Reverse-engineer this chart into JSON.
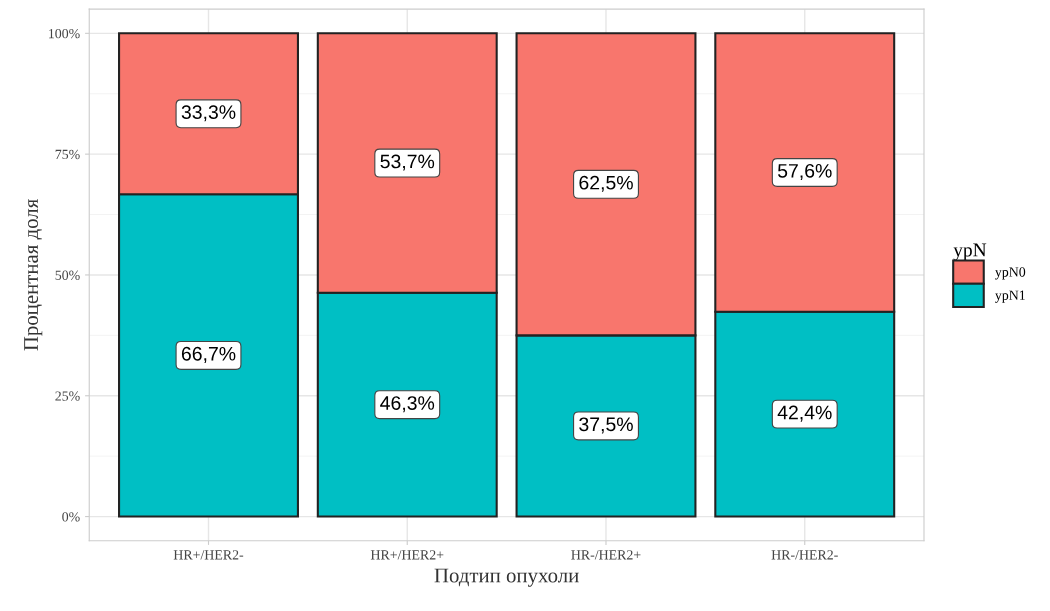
{
  "chart_data": {
    "type": "bar",
    "stacked": true,
    "xlabel": "Подтип опухоли",
    "ylabel": "Процентная доля",
    "legend_title": "ypN",
    "legend": "right",
    "grid": true,
    "categories": [
      "HR+/HER2-",
      "HR+/HER2+",
      "HR-/HER2+",
      "HR-/HER2-"
    ],
    "series": [
      {
        "name": "ypN1",
        "color": "#00bfc4",
        "values": [
          66.7,
          46.3,
          37.5,
          42.4
        ],
        "value_labels": [
          "66,7%",
          "46,3%",
          "37,5%",
          "42,4%"
        ]
      },
      {
        "name": "ypN0",
        "color": "#f8766d",
        "values": [
          33.3,
          53.7,
          62.5,
          57.6
        ],
        "value_labels": [
          "33,3%",
          "53,7%",
          "62,5%",
          "57,6%"
        ]
      }
    ],
    "ylim": [
      -5,
      105
    ],
    "yticks": [
      {
        "value": 0,
        "label": "0%"
      },
      {
        "value": 25,
        "label": "25%"
      },
      {
        "value": 50,
        "label": "50%"
      },
      {
        "value": 75,
        "label": "75%"
      },
      {
        "value": 100,
        "label": "100%"
      }
    ]
  }
}
